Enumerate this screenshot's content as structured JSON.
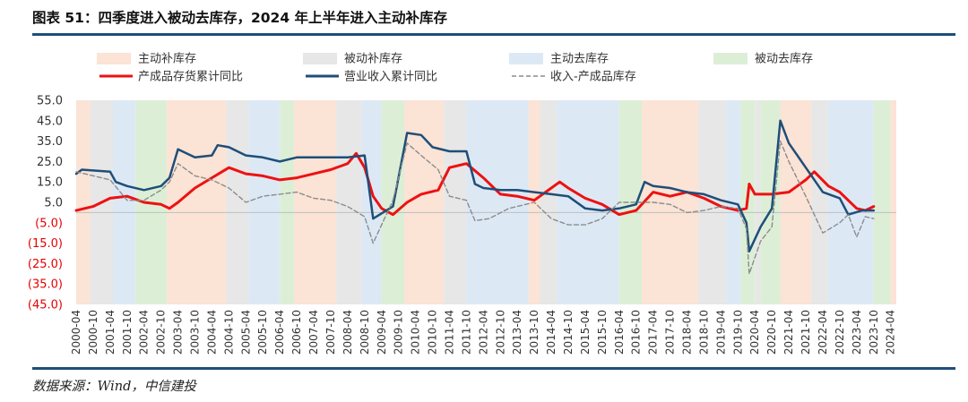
{
  "title": "图表 51：四季度进入被动去库存，2024 年上半年进入主动补库存",
  "source": "数据来源：Wind，中信建投",
  "colors": {
    "active_restock": "#fbe3d6",
    "passive_restock": "#e7e7e7",
    "active_destock": "#dce9f5",
    "passive_destock": "#dcefd6",
    "inventory": "#ee1111",
    "revenue": "#1f4e79",
    "diff": "#8c8c8c",
    "negative_tick": "#e60000",
    "axis_text": "#333333",
    "zero_line": "#bfbfbf"
  },
  "chart_data": {
    "type": "line",
    "ylim": [
      -45,
      55
    ],
    "yticks": [
      55,
      45,
      35,
      25,
      15,
      5,
      -5,
      -15,
      -25,
      -35,
      -45
    ],
    "ytick_labels": [
      "55.0",
      "45.0",
      "35.0",
      "25.0",
      "15.0",
      "5.0",
      "(5.0)",
      "(15.0)",
      "(25.0)",
      "(35.0)",
      "(45.0)"
    ],
    "x_start": "2000-04",
    "x_end": "2024-06",
    "x_ticks": [
      "2000-04",
      "2000-10",
      "2001-04",
      "2001-10",
      "2002-04",
      "2002-10",
      "2003-04",
      "2003-10",
      "2004-04",
      "2004-10",
      "2005-04",
      "2005-10",
      "2006-04",
      "2006-10",
      "2007-04",
      "2007-10",
      "2008-04",
      "2008-10",
      "2009-04",
      "2009-10",
      "2010-04",
      "2010-10",
      "2011-04",
      "2011-10",
      "2012-04",
      "2012-10",
      "2013-04",
      "2013-10",
      "2014-04",
      "2014-10",
      "2015-04",
      "2015-10",
      "2016-04",
      "2016-10",
      "2017-04",
      "2017-10",
      "2018-04",
      "2018-10",
      "2019-04",
      "2019-10",
      "2020-04",
      "2020-10",
      "2021-04",
      "2021-10",
      "2022-04",
      "2022-10",
      "2023-04",
      "2023-10",
      "2024-04"
    ],
    "legend": [
      {
        "type": "patch",
        "label": "主动补库存",
        "color_key": "active_restock"
      },
      {
        "type": "patch",
        "label": "被动补库存",
        "color_key": "passive_restock"
      },
      {
        "type": "patch",
        "label": "主动去库存",
        "color_key": "active_destock"
      },
      {
        "type": "patch",
        "label": "被动去库存",
        "color_key": "passive_destock"
      },
      {
        "type": "line",
        "label": "产成品存货累计同比",
        "color_key": "inventory",
        "style": "solid"
      },
      {
        "type": "line",
        "label": "营业收入累计同比",
        "color_key": "revenue",
        "style": "solid"
      },
      {
        "type": "line",
        "label": "收入-产成品库存",
        "color_key": "diff",
        "style": "dashed"
      }
    ],
    "regimes": [
      {
        "start": "2000-04",
        "end": "2000-09",
        "phase": "active_restock"
      },
      {
        "start": "2000-09",
        "end": "2001-05",
        "phase": "passive_restock"
      },
      {
        "start": "2001-05",
        "end": "2002-01",
        "phase": "active_destock"
      },
      {
        "start": "2002-01",
        "end": "2002-12",
        "phase": "passive_destock"
      },
      {
        "start": "2002-12",
        "end": "2004-09",
        "phase": "active_restock"
      },
      {
        "start": "2004-09",
        "end": "2005-05",
        "phase": "passive_restock"
      },
      {
        "start": "2005-05",
        "end": "2006-04",
        "phase": "active_destock"
      },
      {
        "start": "2006-04",
        "end": "2006-09",
        "phase": "passive_destock"
      },
      {
        "start": "2006-09",
        "end": "2007-12",
        "phase": "active_restock"
      },
      {
        "start": "2007-12",
        "end": "2008-09",
        "phase": "passive_restock"
      },
      {
        "start": "2008-09",
        "end": "2009-04",
        "phase": "active_destock"
      },
      {
        "start": "2009-04",
        "end": "2009-12",
        "phase": "passive_destock"
      },
      {
        "start": "2009-12",
        "end": "2011-02",
        "phase": "active_restock"
      },
      {
        "start": "2011-02",
        "end": "2011-10",
        "phase": "passive_restock"
      },
      {
        "start": "2011-10",
        "end": "2013-08",
        "phase": "active_destock"
      },
      {
        "start": "2013-08",
        "end": "2013-12",
        "phase": "active_restock"
      },
      {
        "start": "2013-12",
        "end": "2014-06",
        "phase": "passive_restock"
      },
      {
        "start": "2014-06",
        "end": "2016-04",
        "phase": "active_destock"
      },
      {
        "start": "2016-04",
        "end": "2016-12",
        "phase": "passive_destock"
      },
      {
        "start": "2016-12",
        "end": "2018-08",
        "phase": "active_restock"
      },
      {
        "start": "2018-08",
        "end": "2019-06",
        "phase": "passive_restock"
      },
      {
        "start": "2019-06",
        "end": "2019-11",
        "phase": "active_destock"
      },
      {
        "start": "2019-11",
        "end": "2020-04",
        "phase": "passive_destock"
      },
      {
        "start": "2020-04",
        "end": "2020-06",
        "phase": "passive_restock"
      },
      {
        "start": "2020-06",
        "end": "2021-01",
        "phase": "passive_destock"
      },
      {
        "start": "2021-01",
        "end": "2021-12",
        "phase": "active_restock"
      },
      {
        "start": "2021-12",
        "end": "2022-06",
        "phase": "passive_restock"
      },
      {
        "start": "2022-06",
        "end": "2023-10",
        "phase": "active_destock"
      },
      {
        "start": "2023-10",
        "end": "2024-04",
        "phase": "passive_destock"
      },
      {
        "start": "2024-04",
        "end": "2024-06",
        "phase": "active_restock"
      }
    ],
    "series": [
      {
        "name": "产成品存货累计同比",
        "color_key": "inventory",
        "width": 3,
        "dash": "",
        "points": [
          [
            "2000-04",
            1
          ],
          [
            "2000-10",
            3
          ],
          [
            "2001-04",
            7
          ],
          [
            "2001-10",
            8
          ],
          [
            "2002-04",
            5
          ],
          [
            "2002-10",
            4
          ],
          [
            "2003-01",
            2
          ],
          [
            "2003-04",
            5
          ],
          [
            "2003-10",
            12
          ],
          [
            "2004-04",
            17
          ],
          [
            "2004-10",
            22
          ],
          [
            "2005-04",
            19
          ],
          [
            "2005-10",
            18
          ],
          [
            "2006-04",
            16
          ],
          [
            "2006-10",
            17
          ],
          [
            "2007-04",
            19
          ],
          [
            "2007-10",
            21
          ],
          [
            "2008-04",
            24
          ],
          [
            "2008-07",
            29
          ],
          [
            "2008-10",
            22
          ],
          [
            "2009-01",
            8
          ],
          [
            "2009-04",
            2
          ],
          [
            "2009-08",
            -1
          ],
          [
            "2010-01",
            5
          ],
          [
            "2010-06",
            9
          ],
          [
            "2010-12",
            11
          ],
          [
            "2011-04",
            22
          ],
          [
            "2011-10",
            24
          ],
          [
            "2012-04",
            17
          ],
          [
            "2012-10",
            9
          ],
          [
            "2013-04",
            8
          ],
          [
            "2013-10",
            6
          ],
          [
            "2014-04",
            12
          ],
          [
            "2014-07",
            15
          ],
          [
            "2014-10",
            12
          ],
          [
            "2015-04",
            7
          ],
          [
            "2015-10",
            4
          ],
          [
            "2016-04",
            -1
          ],
          [
            "2016-10",
            1
          ],
          [
            "2017-04",
            10
          ],
          [
            "2017-10",
            8
          ],
          [
            "2018-04",
            10
          ],
          [
            "2018-10",
            7
          ],
          [
            "2019-04",
            3
          ],
          [
            "2019-10",
            1
          ],
          [
            "2020-01",
            2
          ],
          [
            "2020-02",
            14
          ],
          [
            "2020-04",
            9
          ],
          [
            "2020-10",
            9
          ],
          [
            "2021-04",
            10
          ],
          [
            "2021-10",
            16
          ],
          [
            "2022-01",
            20
          ],
          [
            "2022-06",
            13
          ],
          [
            "2022-10",
            10
          ],
          [
            "2023-04",
            2
          ],
          [
            "2023-07",
            1
          ],
          [
            "2023-10",
            3
          ]
        ]
      },
      {
        "name": "营业收入累计同比",
        "color_key": "revenue",
        "width": 2.5,
        "dash": "",
        "points": [
          [
            "2000-04",
            19
          ],
          [
            "2000-06",
            21
          ],
          [
            "2001-04",
            20
          ],
          [
            "2001-06",
            15
          ],
          [
            "2001-10",
            13
          ],
          [
            "2002-04",
            11
          ],
          [
            "2002-10",
            13
          ],
          [
            "2003-01",
            17
          ],
          [
            "2003-04",
            31
          ],
          [
            "2003-10",
            27
          ],
          [
            "2004-04",
            28
          ],
          [
            "2004-06",
            33
          ],
          [
            "2004-10",
            32
          ],
          [
            "2005-04",
            28
          ],
          [
            "2005-10",
            27
          ],
          [
            "2006-04",
            25
          ],
          [
            "2006-10",
            27
          ],
          [
            "2007-04",
            27
          ],
          [
            "2007-10",
            27
          ],
          [
            "2008-04",
            27
          ],
          [
            "2008-10",
            28
          ],
          [
            "2009-01",
            -3
          ],
          [
            "2009-08",
            3
          ],
          [
            "2010-01",
            39
          ],
          [
            "2010-06",
            38
          ],
          [
            "2010-10",
            32
          ],
          [
            "2011-04",
            30
          ],
          [
            "2011-10",
            30
          ],
          [
            "2012-01",
            14
          ],
          [
            "2012-04",
            12
          ],
          [
            "2012-10",
            11
          ],
          [
            "2013-04",
            11
          ],
          [
            "2013-10",
            10
          ],
          [
            "2014-04",
            9
          ],
          [
            "2014-10",
            8
          ],
          [
            "2015-04",
            2
          ],
          [
            "2015-10",
            1
          ],
          [
            "2016-04",
            2
          ],
          [
            "2016-10",
            4
          ],
          [
            "2017-01",
            15
          ],
          [
            "2017-04",
            13
          ],
          [
            "2017-10",
            12
          ],
          [
            "2018-04",
            10
          ],
          [
            "2018-10",
            9
          ],
          [
            "2019-04",
            6
          ],
          [
            "2019-10",
            4
          ],
          [
            "2020-01",
            -5
          ],
          [
            "2020-02",
            -19
          ],
          [
            "2020-06",
            -7
          ],
          [
            "2020-10",
            2
          ],
          [
            "2021-01",
            45
          ],
          [
            "2021-04",
            34
          ],
          [
            "2021-10",
            22
          ],
          [
            "2022-04",
            10
          ],
          [
            "2022-10",
            7
          ],
          [
            "2023-01",
            -1
          ],
          [
            "2023-06",
            1
          ],
          [
            "2023-10",
            1
          ]
        ]
      },
      {
        "name": "收入-产成品库存",
        "color_key": "diff",
        "width": 1.4,
        "dash": "5,3",
        "points": [
          [
            "2000-04",
            20
          ],
          [
            "2001-04",
            16
          ],
          [
            "2001-10",
            6
          ],
          [
            "2002-04",
            6
          ],
          [
            "2002-10",
            11
          ],
          [
            "2003-01",
            15
          ],
          [
            "2003-04",
            24
          ],
          [
            "2003-10",
            18
          ],
          [
            "2004-04",
            16
          ],
          [
            "2004-10",
            12
          ],
          [
            "2005-04",
            5
          ],
          [
            "2005-10",
            8
          ],
          [
            "2006-04",
            9
          ],
          [
            "2006-10",
            10
          ],
          [
            "2007-04",
            7
          ],
          [
            "2007-10",
            6
          ],
          [
            "2008-04",
            3
          ],
          [
            "2008-10",
            -2
          ],
          [
            "2009-01",
            -15
          ],
          [
            "2009-08",
            6
          ],
          [
            "2010-01",
            34
          ],
          [
            "2010-06",
            28
          ],
          [
            "2010-12",
            21
          ],
          [
            "2011-04",
            8
          ],
          [
            "2011-10",
            6
          ],
          [
            "2012-01",
            -4
          ],
          [
            "2012-06",
            -3
          ],
          [
            "2013-01",
            2
          ],
          [
            "2013-10",
            5
          ],
          [
            "2014-04",
            -3
          ],
          [
            "2014-10",
            -6
          ],
          [
            "2015-04",
            -6
          ],
          [
            "2015-10",
            -3
          ],
          [
            "2016-04",
            5
          ],
          [
            "2016-10",
            5
          ],
          [
            "2017-04",
            5
          ],
          [
            "2017-10",
            4
          ],
          [
            "2018-04",
            0
          ],
          [
            "2018-10",
            1
          ],
          [
            "2019-04",
            3
          ],
          [
            "2019-10",
            2
          ],
          [
            "2020-01",
            -8
          ],
          [
            "2020-02",
            -30
          ],
          [
            "2020-06",
            -14
          ],
          [
            "2020-10",
            -7
          ],
          [
            "2021-01",
            35
          ],
          [
            "2021-04",
            25
          ],
          [
            "2021-10",
            8
          ],
          [
            "2022-04",
            -10
          ],
          [
            "2022-10",
            -5
          ],
          [
            "2023-01",
            -1
          ],
          [
            "2023-04",
            -12
          ],
          [
            "2023-07",
            -2
          ],
          [
            "2023-10",
            -3
          ]
        ]
      }
    ]
  }
}
